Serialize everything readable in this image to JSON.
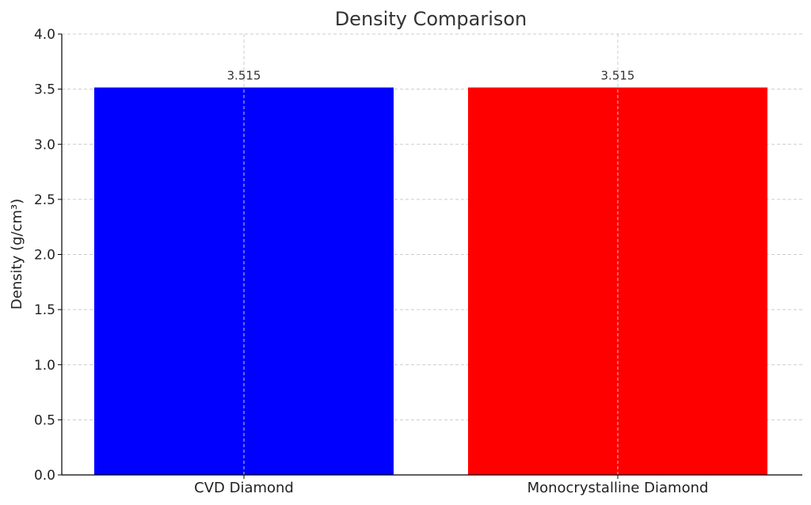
{
  "chart_data": {
    "type": "bar",
    "title": "Density Comparison",
    "xlabel": "",
    "ylabel": "Density (g/cm³)",
    "categories": [
      "CVD Diamond",
      "Monocrystalline Diamond"
    ],
    "values": [
      3.515,
      3.515
    ],
    "value_labels": [
      "3.515",
      "3.515"
    ],
    "colors": [
      "#0000ff",
      "#ff0000"
    ],
    "ylim": [
      0,
      4.0
    ],
    "yticks": [
      0.0,
      0.5,
      1.0,
      1.5,
      2.0,
      2.5,
      3.0,
      3.5,
      4.0
    ],
    "ytick_labels": [
      "0.0",
      "0.5",
      "1.0",
      "1.5",
      "2.0",
      "2.5",
      "3.0",
      "3.5",
      "4.0"
    ],
    "grid": true
  }
}
